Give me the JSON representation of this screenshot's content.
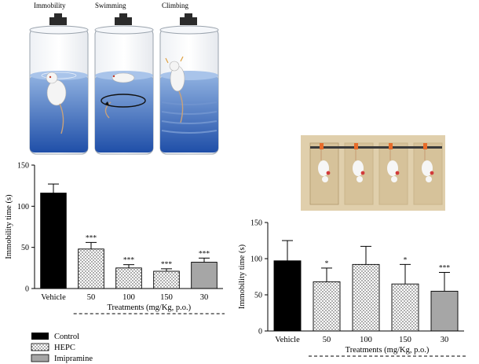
{
  "panels": {
    "fst": {
      "labels": [
        "Immobility",
        "Swimming",
        "Climbing"
      ]
    }
  },
  "legend": {
    "items": [
      {
        "label": "Control",
        "pattern": "solid-black"
      },
      {
        "label": "HEPC",
        "pattern": "dotted"
      },
      {
        "label": "Imipramine",
        "pattern": "solid-gray"
      }
    ]
  },
  "colors": {
    "control": "#000000",
    "hepc_fill": "#ffffff",
    "hepc_dots": "#333333",
    "imipramine": "#a6a6a6",
    "water_light": "#8fb1e0",
    "water_dark": "#1f4fa8",
    "tst_box": "#e0cfac",
    "tst_box_dark": "#c9b48a",
    "lamp": "#2b2b2b"
  },
  "chart_data": [
    {
      "type": "bar",
      "title": "",
      "xlabel": "Treatments (mg/Kg, p.o.)",
      "ylabel": "Immobility time (s)",
      "ylim": [
        0,
        150
      ],
      "yticks": [
        0,
        50,
        100,
        150
      ],
      "categories": [
        "Vehicle",
        "50",
        "100",
        "150",
        "30"
      ],
      "values": [
        116,
        48,
        25,
        21,
        32
      ],
      "errors": [
        11,
        8,
        4,
        3,
        5
      ],
      "groups": [
        "control",
        "hepc",
        "hepc",
        "hepc",
        "imipramine"
      ],
      "significance": [
        "",
        "***",
        "***",
        "***",
        "***"
      ],
      "grid": false
    },
    {
      "type": "bar",
      "title": "",
      "xlabel": "Treatments (mg/Kg, p.o.)",
      "ylabel": "Immobility time (s)",
      "ylim": [
        0,
        150
      ],
      "yticks": [
        0,
        50,
        100,
        150
      ],
      "categories": [
        "Vehicle",
        "50",
        "100",
        "150",
        "30"
      ],
      "values": [
        97,
        68,
        92,
        65,
        55
      ],
      "errors": [
        28,
        19,
        25,
        27,
        26
      ],
      "groups": [
        "control",
        "hepc",
        "hepc",
        "hepc",
        "imipramine"
      ],
      "significance": [
        "",
        "*",
        "",
        "*",
        "***"
      ],
      "grid": false
    }
  ]
}
